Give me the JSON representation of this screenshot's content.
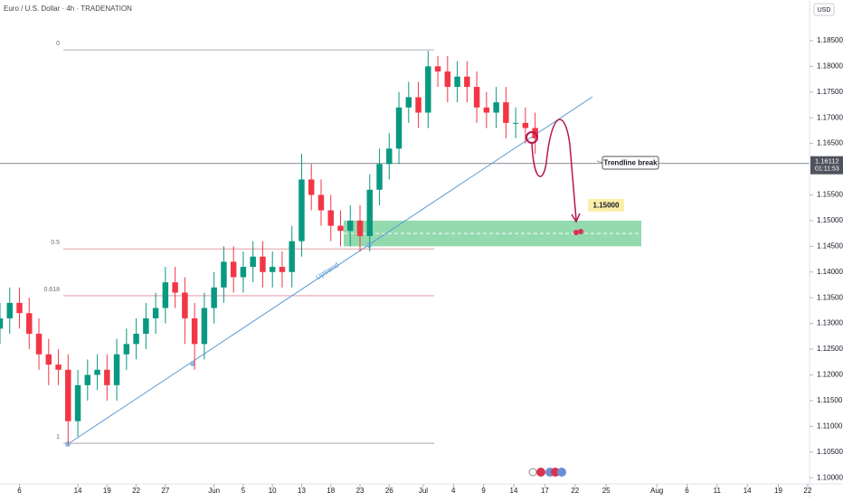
{
  "chart_data": {
    "type": "candlestick",
    "title": "Euro / U.S. Dollar · 4h · TRADENATION",
    "currency": "USD",
    "x": [
      -2,
      -1,
      0,
      1,
      2,
      3,
      4,
      5,
      6,
      7,
      8,
      9,
      10,
      11,
      12,
      13,
      14,
      15,
      16,
      17,
      18,
      19,
      20,
      21,
      22,
      23,
      24,
      25,
      26,
      27,
      28,
      29,
      30,
      31,
      32,
      33,
      34,
      35,
      36,
      37,
      38,
      39,
      40,
      41,
      42,
      43,
      44,
      45,
      46,
      47,
      48,
      49,
      50,
      51,
      52,
      53
    ],
    "open": [
      1.129,
      1.131,
      1.134,
      1.132,
      1.128,
      1.124,
      1.122,
      1.121,
      1.111,
      1.118,
      1.12,
      1.121,
      1.118,
      1.124,
      1.126,
      1.128,
      1.131,
      1.133,
      1.138,
      1.136,
      1.131,
      1.126,
      1.133,
      1.137,
      1.142,
      1.139,
      1.141,
      1.143,
      1.14,
      1.141,
      1.14,
      1.146,
      1.158,
      1.155,
      1.152,
      1.149,
      1.148,
      1.15,
      1.147,
      1.156,
      1.161,
      1.164,
      1.172,
      1.174,
      1.171,
      1.18,
      1.179,
      1.176,
      1.178,
      1.176,
      1.172,
      1.171,
      1.173,
      1.169,
      1.169,
      1.168
    ],
    "high": [
      1.134,
      1.137,
      1.137,
      1.135,
      1.131,
      1.127,
      1.125,
      1.124,
      1.121,
      1.123,
      1.124,
      1.124,
      1.127,
      1.129,
      1.131,
      1.134,
      1.136,
      1.141,
      1.141,
      1.139,
      1.134,
      1.136,
      1.14,
      1.145,
      1.145,
      1.144,
      1.146,
      1.146,
      1.144,
      1.144,
      1.149,
      1.163,
      1.161,
      1.158,
      1.155,
      1.152,
      1.153,
      1.153,
      1.159,
      1.164,
      1.167,
      1.175,
      1.177,
      1.177,
      1.183,
      1.182,
      1.182,
      1.181,
      1.181,
      1.179,
      1.175,
      1.176,
      1.176,
      1.172,
      1.172,
      1.171
    ],
    "low": [
      1.126,
      1.128,
      1.129,
      1.125,
      1.121,
      1.118,
      1.118,
      1.1065,
      1.108,
      1.115,
      1.117,
      1.115,
      1.115,
      1.121,
      1.123,
      1.125,
      1.128,
      1.13,
      1.133,
      1.126,
      1.121,
      1.123,
      1.13,
      1.134,
      1.136,
      1.136,
      1.138,
      1.137,
      1.137,
      1.137,
      1.137,
      1.143,
      1.152,
      1.149,
      1.146,
      1.145,
      1.145,
      1.144,
      1.144,
      1.153,
      1.158,
      1.161,
      1.169,
      1.168,
      1.168,
      1.176,
      1.173,
      1.173,
      1.173,
      1.169,
      1.168,
      1.168,
      1.166,
      1.166,
      1.165,
      1.163
    ],
    "close": [
      1.131,
      1.134,
      1.132,
      1.128,
      1.124,
      1.122,
      1.121,
      1.111,
      1.118,
      1.12,
      1.121,
      1.118,
      1.124,
      1.126,
      1.128,
      1.131,
      1.133,
      1.138,
      1.136,
      1.131,
      1.126,
      1.133,
      1.137,
      1.142,
      1.139,
      1.141,
      1.143,
      1.14,
      1.141,
      1.14,
      1.146,
      1.158,
      1.155,
      1.152,
      1.149,
      1.148,
      1.15,
      1.147,
      1.156,
      1.161,
      1.164,
      1.172,
      1.174,
      1.171,
      1.18,
      1.179,
      1.176,
      1.178,
      1.176,
      1.172,
      1.171,
      1.173,
      1.169,
      1.169,
      1.168,
      1.166
    ],
    "up_color": "#089981",
    "down_color": "#f23645",
    "xlim": [
      -2,
      81.2
    ],
    "ylim": [
      1.0988,
      1.1929
    ],
    "xticks": [
      {
        "value": 0,
        "label": "6"
      },
      {
        "value": 6,
        "label": "14"
      },
      {
        "value": 9,
        "label": "19"
      },
      {
        "value": 12,
        "label": "22"
      },
      {
        "value": 15,
        "label": "27"
      },
      {
        "value": 20,
        "label": "Jun"
      },
      {
        "value": 23,
        "label": "5"
      },
      {
        "value": 26,
        "label": "10"
      },
      {
        "value": 29,
        "label": "13"
      },
      {
        "value": 32,
        "label": "18"
      },
      {
        "value": 35,
        "label": "23"
      },
      {
        "value": 38,
        "label": "26"
      },
      {
        "value": 41.5,
        "label": "Jul"
      },
      {
        "value": 44.6,
        "label": "4"
      },
      {
        "value": 47.7,
        "label": "9"
      },
      {
        "value": 50.8,
        "label": "14"
      },
      {
        "value": 54,
        "label": "17"
      },
      {
        "value": 57.1,
        "label": "22"
      },
      {
        "value": 60.3,
        "label": "25"
      },
      {
        "value": 65.5,
        "label": "Aug"
      },
      {
        "value": 68.6,
        "label": "6"
      },
      {
        "value": 71.7,
        "label": "11"
      },
      {
        "value": 74.8,
        "label": "14"
      },
      {
        "value": 78,
        "label": "19"
      },
      {
        "value": 81,
        "label": "22"
      }
    ],
    "yticks": [
      {
        "value": 1.185,
        "label": "1.18500"
      },
      {
        "value": 1.18,
        "label": "1.18000"
      },
      {
        "value": 1.175,
        "label": "1.17500"
      },
      {
        "value": 1.17,
        "label": "1.17000"
      },
      {
        "value": 1.165,
        "label": "1.16500"
      },
      {
        "value": 1.155,
        "label": "1.15500"
      },
      {
        "value": 1.15,
        "label": "1.15000"
      },
      {
        "value": 1.145,
        "label": "1.14500"
      },
      {
        "value": 1.14,
        "label": "1.14000"
      },
      {
        "value": 1.135,
        "label": "1.13500"
      },
      {
        "value": 1.13,
        "label": "1.13000"
      },
      {
        "value": 1.125,
        "label": "1.12500"
      },
      {
        "value": 1.12,
        "label": "1.12000"
      },
      {
        "value": 1.115,
        "label": "1.11500"
      },
      {
        "value": 1.11,
        "label": "1.11000"
      },
      {
        "value": 1.105,
        "label": "1.10500"
      },
      {
        "value": 1.1,
        "label": "1.10000"
      }
    ],
    "current_price": {
      "value": 1.16112,
      "label": "1.16112",
      "countdown": "01:11:53"
    },
    "fib_levels": [
      {
        "label": "0",
        "price": 1.1832,
        "color": "#9598a1"
      },
      {
        "label": "0.5",
        "price": 1.1445,
        "color": "#e08a96"
      },
      {
        "label": "0.618",
        "price": 1.1354,
        "color": "#e08a96"
      },
      {
        "label": "1",
        "price": 1.1067,
        "color": "#9598a1"
      }
    ],
    "target_zone": {
      "low": 1.145,
      "high": 1.15,
      "mid": 1.1475,
      "label": "1.15000",
      "color": "#4cc27a"
    },
    "annotations": {
      "trend": "Uptrend",
      "break": "Trendline break"
    }
  }
}
